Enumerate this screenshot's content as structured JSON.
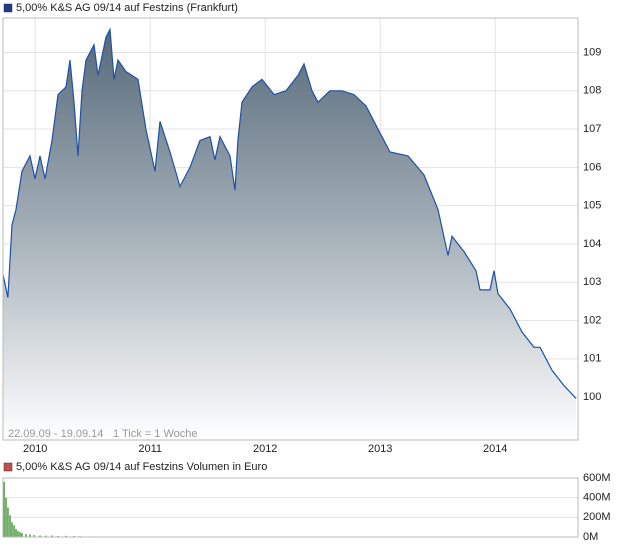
{
  "chart_data": [
    {
      "type": "area",
      "title": "5,00% K&S AG 09/14 auf Festzins (Frankfurt)",
      "legend_color": "#1e3a8a",
      "annotations": [
        "22.09.09 - 19.09.14",
        "1 Tick = 1 Woche"
      ],
      "x": [
        2009.72,
        2009.763,
        2009.798,
        2009.833,
        2009.885,
        2009.955,
        2009.998,
        2010.042,
        2010.085,
        2010.146,
        2010.198,
        2010.268,
        2010.303,
        2010.337,
        2010.372,
        2010.407,
        2010.442,
        2010.511,
        2010.546,
        2010.616,
        2010.65,
        2010.685,
        2010.72,
        2010.79,
        2010.894,
        2010.963,
        2011.042,
        2011.085,
        2011.172,
        2011.259,
        2011.346,
        2011.433,
        2011.52,
        2011.563,
        2011.607,
        2011.694,
        2011.737,
        2011.763,
        2011.798,
        2011.885,
        2011.972,
        2012.077,
        2012.181,
        2012.285,
        2012.337,
        2012.407,
        2012.459,
        2012.563,
        2012.668,
        2012.772,
        2012.877,
        2012.981,
        2013.085,
        2013.242,
        2013.381,
        2013.503,
        2013.59,
        2013.624,
        2013.729,
        2013.833,
        2013.868,
        2013.955,
        2013.99,
        2014.024,
        2014.129,
        2014.233,
        2014.337,
        2014.39,
        2014.494,
        2014.598,
        2014.703
      ],
      "series": [
        {
          "color": "#1e50a8",
          "fill": "#5c6f7b",
          "values": [
            103.2,
            102.6,
            104.5,
            104.9,
            105.9,
            106.3,
            105.7,
            106.3,
            105.7,
            106.7,
            107.9,
            108.1,
            108.8,
            107.7,
            106.3,
            108.0,
            108.8,
            109.2,
            108.4,
            109.4,
            109.6,
            108.3,
            108.8,
            108.5,
            108.3,
            107.0,
            105.9,
            107.2,
            106.4,
            105.5,
            106.0,
            106.7,
            106.8,
            106.2,
            106.8,
            106.3,
            105.4,
            106.7,
            107.7,
            108.1,
            108.3,
            107.9,
            108.0,
            108.4,
            108.7,
            108.0,
            107.7,
            108.0,
            108.0,
            107.9,
            107.6,
            107.0,
            106.4,
            106.3,
            105.8,
            104.9,
            103.7,
            104.2,
            103.8,
            103.3,
            102.8,
            102.8,
            103.3,
            102.7,
            102.3,
            101.7,
            101.3,
            101.3,
            100.7,
            100.3,
            99.97
          ]
        }
      ],
      "xlim": [
        2009.72,
        2014.72
      ],
      "xticks": [
        2010,
        2011,
        2012,
        2013,
        2014
      ],
      "ylim": [
        98.88,
        109.9
      ],
      "yticks": [
        100,
        101,
        102,
        103,
        104,
        105,
        106,
        107,
        108,
        109
      ],
      "grid": true
    },
    {
      "type": "bar",
      "title": "5,00% K&S AG 09/14 auf Festzins Volumen in Euro",
      "legend_color": "#c0504d",
      "x": [
        2009.729,
        2009.746,
        2009.763,
        2009.781,
        2009.798,
        2009.816,
        2009.833,
        2009.85,
        2009.868,
        2009.885,
        2009.92,
        2009.955,
        2009.99,
        2010.042,
        2010.094,
        2010.146,
        2010.198,
        2010.268,
        2010.337,
        2010.39,
        2010.477,
        2010.563,
        2010.737,
        2010.998,
        2011.259,
        2011.607,
        2011.955,
        2012.303,
        2012.737,
        2013.172,
        2013.607,
        2014.042
      ],
      "series": [
        {
          "color": "#4f9a45",
          "values": [
            560,
            400,
            300,
            220,
            150,
            120,
            80,
            60,
            50,
            40,
            30,
            25,
            20,
            15,
            12,
            15,
            10,
            12,
            10,
            8,
            6,
            5,
            5,
            4,
            3,
            3,
            2,
            2,
            2,
            1,
            1,
            1
          ]
        }
      ],
      "xlim": [
        2009.72,
        2014.72
      ],
      "ylim": [
        0,
        600
      ],
      "yticks": [
        {
          "value": 0,
          "label": "0M"
        },
        {
          "value": 200,
          "label": "200M"
        },
        {
          "value": 400,
          "label": "400M"
        },
        {
          "value": 600,
          "label": "600M"
        }
      ],
      "grid": true
    }
  ]
}
